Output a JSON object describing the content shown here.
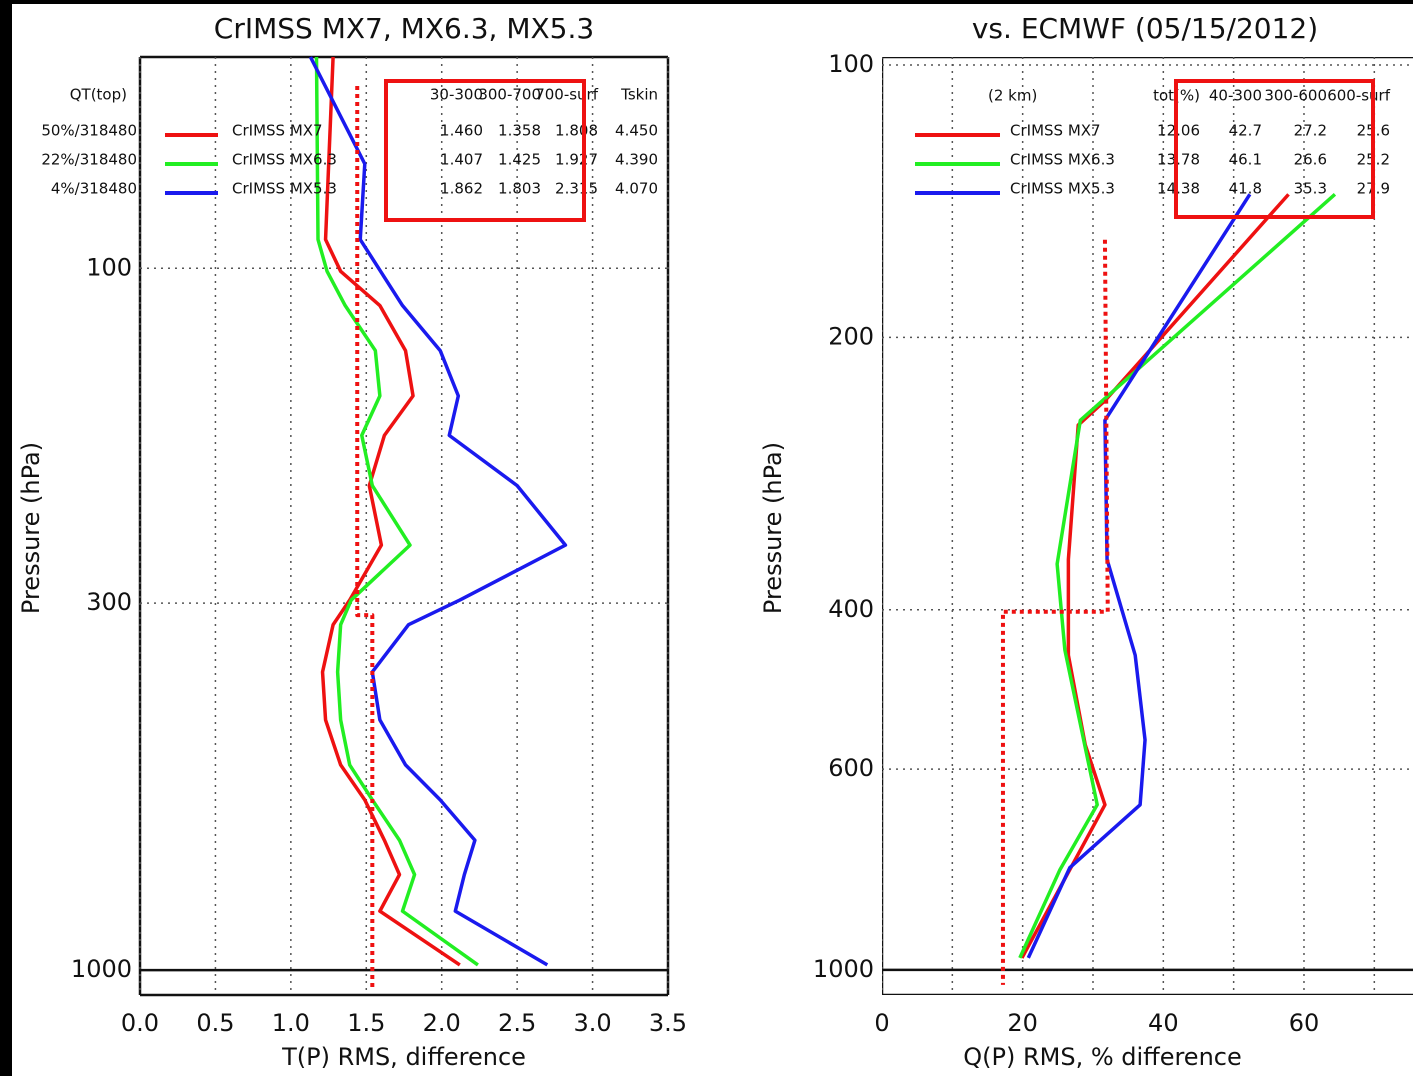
{
  "chart_data": [
    {
      "type": "line",
      "title": "CrIMSS MX7, MX6.3, MX5.3",
      "xlabel": "T(P) RMS, difference",
      "ylabel": "Pressure (hPa)",
      "xlim": [
        0,
        3.5
      ],
      "xticks": [
        {
          "value": 0,
          "label": "0.0"
        },
        0.5,
        {
          "value": 1,
          "label": "1.0"
        },
        1.5,
        {
          "value": 2,
          "label": "2.0"
        },
        2.5,
        {
          "value": 3,
          "label": "3.0"
        },
        3.5
      ],
      "ylim": [
        50,
        1085
      ],
      "y_log": true,
      "y_reversed": true,
      "yticks": [
        100,
        300,
        1000
      ],
      "reference_pressure": 1000,
      "grid": true,
      "series": [
        {
          "name": "CrIMSS MX7",
          "color": "#ee1111",
          "pressure": [
            50,
            91,
            101,
            113,
            131,
            152,
            173,
            204,
            248,
            297,
            322,
            376,
            440,
            510,
            572,
            653,
            731,
            824,
            983
          ],
          "values": [
            1.28,
            1.23,
            1.33,
            1.59,
            1.76,
            1.81,
            1.62,
            1.52,
            1.6,
            1.39,
            1.28,
            1.21,
            1.23,
            1.33,
            1.49,
            1.62,
            1.72,
            1.59,
            2.12
          ]
        },
        {
          "name": "CrIMSS MX6.3",
          "color": "#22ee22",
          "pressure": [
            50,
            91,
            101,
            113,
            131,
            152,
            173,
            204,
            248,
            297,
            322,
            376,
            440,
            510,
            572,
            653,
            731,
            824,
            983
          ],
          "values": [
            1.17,
            1.18,
            1.24,
            1.36,
            1.56,
            1.59,
            1.47,
            1.54,
            1.79,
            1.4,
            1.33,
            1.31,
            1.33,
            1.39,
            1.54,
            1.72,
            1.82,
            1.74,
            2.24
          ]
        },
        {
          "name": "CrIMSS MX5.3",
          "color": "#1a1aee",
          "pressure": [
            50,
            71,
            91,
            113,
            131,
            152,
            173,
            204,
            248,
            297,
            322,
            376,
            440,
            510,
            572,
            653,
            731,
            824,
            983
          ],
          "values": [
            1.13,
            1.49,
            1.46,
            1.74,
            1.99,
            2.11,
            2.05,
            2.5,
            2.82,
            2.12,
            1.78,
            1.54,
            1.59,
            1.76,
            1.99,
            2.22,
            2.15,
            2.09,
            2.7
          ]
        },
        {
          "color": "#ee1111",
          "dashed": true,
          "pressure": [
            55,
            312,
            312,
            1067
          ],
          "values": [
            1.44,
            1.44,
            1.54,
            1.54
          ]
        }
      ],
      "stats": {
        "side_header": "QT(top)",
        "side_labels": [
          "50%/318480",
          "22%/318480",
          "4%/318480"
        ],
        "header": [
          "30-300",
          "300-700",
          "700-surf",
          "Tskin"
        ],
        "rows": [
          [
            "1.460",
            "1.358",
            "1.808",
            "4.450"
          ],
          [
            "1.407",
            "1.425",
            "1.927",
            "4.390"
          ],
          [
            "1.862",
            "1.803",
            "2.315",
            "4.070"
          ]
        ]
      }
    },
    {
      "type": "line",
      "title": "vs. ECMWF (05/15/2012)",
      "xlabel": "Q(P) RMS, % difference",
      "ylabel": "Pressure (hPa)",
      "xlim": [
        0,
        75.5
      ],
      "xticks": [
        0,
        20,
        40,
        60
      ],
      "xticks_minor": [
        10,
        30,
        50,
        70
      ],
      "ylim": [
        98,
        1066
      ],
      "y_log": true,
      "y_reversed": true,
      "yticks": [
        100,
        200,
        400,
        600,
        1000
      ],
      "reference_pressure": 1000,
      "grid": true,
      "series": [
        {
          "name": "CrIMSS MX7",
          "color": "#ee1111",
          "pressure": [
            139,
            235,
            250,
            352,
            449,
            564,
            657,
            775,
            970
          ],
          "values": [
            57.8,
            31.7,
            27.9,
            26.5,
            26.5,
            28.9,
            31.7,
            26.7,
            19.9
          ]
        },
        {
          "name": "CrIMSS MX6.3",
          "color": "#22ee22",
          "pressure": [
            139,
            247,
            356,
            443,
            657,
            775,
            970
          ],
          "values": [
            64.4,
            28.2,
            24.9,
            26.0,
            30.6,
            25.3,
            19.6
          ]
        },
        {
          "name": "CrIMSS MX5.3",
          "color": "#1a1aee",
          "pressure": [
            139,
            247,
            352,
            449,
            557,
            657,
            771,
            970
          ],
          "values": [
            52.3,
            31.7,
            32.0,
            36.0,
            37.4,
            36.7,
            26.7,
            20.8
          ]
        },
        {
          "color": "#ee1111",
          "dashed": true,
          "pressure": [
            156,
            402,
            402,
            1039
          ],
          "values": [
            31.7,
            32.1,
            17.2,
            17.2
          ]
        }
      ],
      "stats": {
        "side_header": "(2 km)",
        "header": [
          "tot(%)",
          "40-300",
          "300-600",
          "600-surf"
        ],
        "rows": [
          [
            "12.06",
            "42.7",
            "27.2",
            "25.6"
          ],
          [
            "13.78",
            "46.1",
            "26.6",
            "25.2"
          ],
          [
            "14.38",
            "41.8",
            "35.3",
            "27.9"
          ]
        ]
      }
    }
  ]
}
